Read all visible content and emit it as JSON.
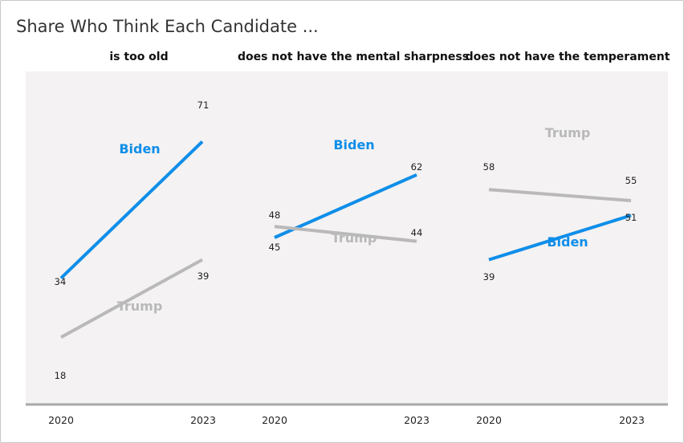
{
  "title": "Share Who Think Each Candidate ...",
  "colors": {
    "biden": "#0e8ee9",
    "trump": "#b9b9b9",
    "panel_bg": "#f4f2f2",
    "axis": "#a8a8a8",
    "text": "#222222"
  },
  "chart_data": {
    "type": "line",
    "title": "Share Who Think Each Candidate ...",
    "x": [
      "2020",
      "2023"
    ],
    "ylim": [
      0,
      90
    ],
    "grid": false,
    "panels": [
      {
        "subtitle": "is too old",
        "series": [
          {
            "name": "Biden",
            "values": [
              34,
              71
            ]
          },
          {
            "name": "Trump",
            "values": [
              18,
              39
            ]
          }
        ]
      },
      {
        "subtitle": "does not have the mental sharpness",
        "series": [
          {
            "name": "Biden",
            "values": [
              45,
              62
            ]
          },
          {
            "name": "Trump",
            "values": [
              48,
              44
            ]
          }
        ]
      },
      {
        "subtitle": "does not have the temperament",
        "series": [
          {
            "name": "Biden",
            "values": [
              39,
              51
            ]
          },
          {
            "name": "Trump",
            "values": [
              58,
              55
            ]
          }
        ]
      }
    ]
  }
}
